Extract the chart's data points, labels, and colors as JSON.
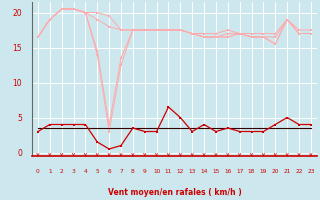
{
  "x": [
    0,
    1,
    2,
    3,
    4,
    5,
    6,
    7,
    8,
    9,
    10,
    11,
    12,
    13,
    14,
    15,
    16,
    17,
    18,
    19,
    20,
    21,
    22,
    23
  ],
  "line_top": [
    16.5,
    19.0,
    20.5,
    20.5,
    20.0,
    20.0,
    19.5,
    17.5,
    17.5,
    17.5,
    17.5,
    17.5,
    17.5,
    17.0,
    17.0,
    17.0,
    17.5,
    17.0,
    17.0,
    17.0,
    17.0,
    19.0,
    17.5,
    17.5
  ],
  "line_mid_upper": [
    16.5,
    19.0,
    20.5,
    20.5,
    20.0,
    19.0,
    18.0,
    17.5,
    17.5,
    17.5,
    17.5,
    17.5,
    17.5,
    17.0,
    16.5,
    16.5,
    17.0,
    17.0,
    16.5,
    16.5,
    16.5,
    19.0,
    17.0,
    17.0
  ],
  "line_mid_lower": [
    16.5,
    19.0,
    20.5,
    20.5,
    20.0,
    14.5,
    4.0,
    13.5,
    17.5,
    17.5,
    17.5,
    17.5,
    17.5,
    17.0,
    16.5,
    16.5,
    16.5,
    17.0,
    16.5,
    16.5,
    15.5,
    19.0,
    17.0,
    17.0
  ],
  "line_bottom_light": [
    16.5,
    19.0,
    20.5,
    20.5,
    20.0,
    14.0,
    3.0,
    12.5,
    17.5,
    17.5,
    17.5,
    17.5,
    17.5,
    17.0,
    16.5,
    16.5,
    16.5,
    17.0,
    16.5,
    16.5,
    15.5,
    19.0,
    17.0,
    17.0
  ],
  "line_dark_red": [
    3.0,
    4.0,
    4.0,
    4.0,
    4.0,
    1.5,
    0.5,
    1.0,
    3.5,
    3.0,
    3.0,
    6.5,
    5.0,
    3.0,
    4.0,
    3.0,
    3.5,
    3.0,
    3.0,
    3.0,
    4.0,
    5.0,
    4.0,
    4.0
  ],
  "line_flat_dark": [
    3.5,
    3.5,
    3.5,
    3.5,
    3.5,
    3.5,
    3.5,
    3.5,
    3.5,
    3.5,
    3.5,
    3.5,
    3.5,
    3.5,
    3.5,
    3.5,
    3.5,
    3.5,
    3.5,
    3.5,
    3.5,
    3.5,
    3.5,
    3.5
  ],
  "bg_color": "#cce8ee",
  "grid_color": "#ffffff",
  "light_pink": "#ffaaaa",
  "dark_red": "#cc0000",
  "near_black": "#330000",
  "xlabel": "Vent moyen/en rafales ( km/h )",
  "yticks": [
    0,
    5,
    10,
    15,
    20
  ],
  "ylim": [
    -0.5,
    21.5
  ],
  "xlim": [
    -0.5,
    23.5
  ]
}
